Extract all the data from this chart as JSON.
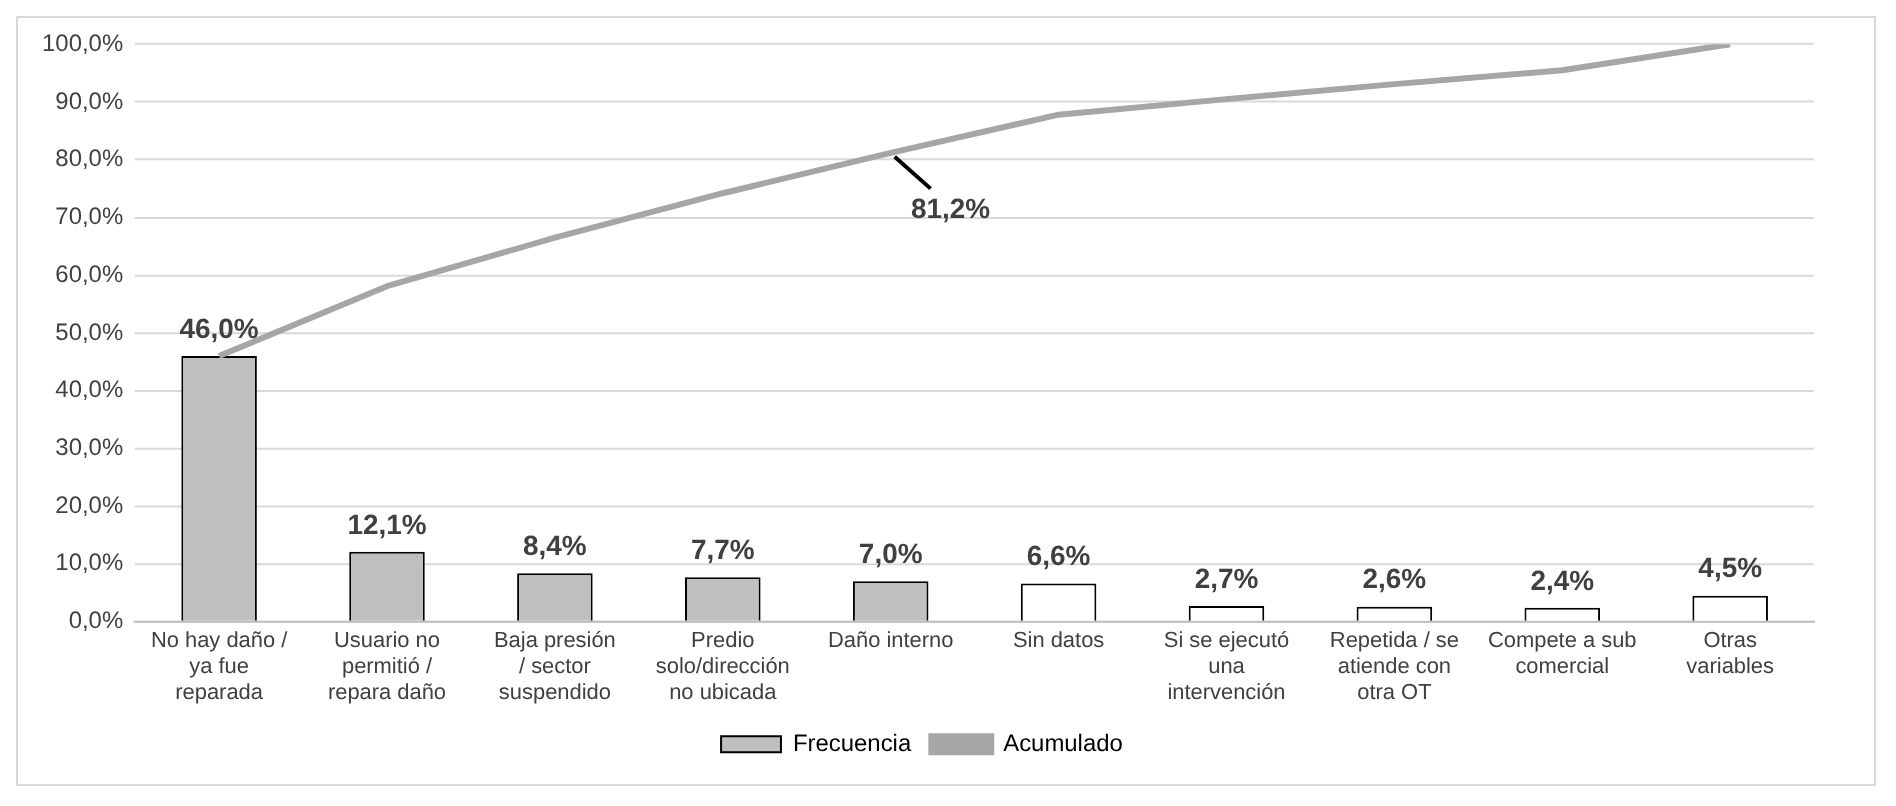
{
  "chart_data": {
    "type": "bar",
    "categories": [
      "No hay daño / ya fue reparada",
      "Usuario no permitió / repara daño",
      "Baja presión / sector suspendido",
      "Predio solo/dirección no ubicada",
      "Daño interno",
      "Sin datos",
      "Si se ejecutó una intervención",
      "Repetida / se atiende con otra OT",
      "Compete a sub comercial",
      "Otras variables"
    ],
    "series": [
      {
        "name": "Frecuencia",
        "colors": [
          "#bfbfbf",
          "#bfbfbf",
          "#bfbfbf",
          "#bfbfbf",
          "#bfbfbf",
          "#ffffff",
          "#ffffff",
          "#ffffff",
          "#ffffff",
          "#ffffff"
        ],
        "color": "#bfbfbf",
        "values": [
          46.0,
          12.1,
          8.4,
          7.7,
          7.0,
          6.6,
          2.7,
          2.6,
          2.4,
          4.5
        ],
        "value_labels": [
          "46,0%",
          "12,1%",
          "8,4%",
          "7,7%",
          "7,0%",
          "6,6%",
          "2,7%",
          "2,6%",
          "2,4%",
          "4,5%"
        ]
      },
      {
        "name": "Acumulado",
        "type": "line",
        "color": "#a6a6a6",
        "values": [
          46.0,
          58.1,
          66.5,
          74.2,
          81.2,
          87.8,
          90.5,
          93.1,
          95.5,
          100.0
        ]
      }
    ],
    "ylim": [
      0,
      100
    ],
    "yticks": [
      {
        "value": 0,
        "label": "0,0%"
      },
      {
        "value": 10,
        "label": "10,0%"
      },
      {
        "value": 20,
        "label": "20,0%"
      },
      {
        "value": 30,
        "label": "30,0%"
      },
      {
        "value": 40,
        "label": "40,0%"
      },
      {
        "value": 50,
        "label": "50,0%"
      },
      {
        "value": 60,
        "label": "60,0%"
      },
      {
        "value": 70,
        "label": "70,0%"
      },
      {
        "value": 80,
        "label": "80,0%"
      },
      {
        "value": 90,
        "label": "90,0%"
      },
      {
        "value": 100,
        "label": "100,0%"
      }
    ],
    "annotations": [
      {
        "text": "81,2%",
        "x": "Daño interno",
        "y": 81.2
      }
    ],
    "grid": "y",
    "legend": "bottom",
    "marker": "none",
    "line_style": "solid"
  }
}
